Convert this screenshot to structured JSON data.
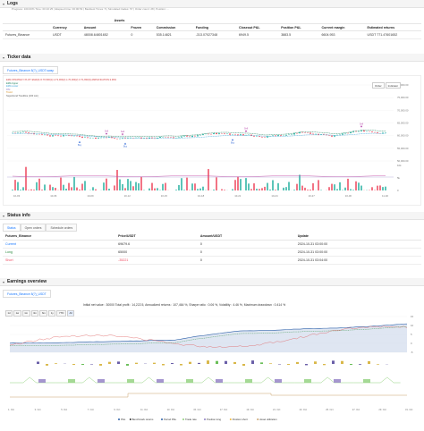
{
  "logs": {
    "title": "Logs",
    "subtitle": "Progress: 100.00% Time: 00:10:25 | Elapsed time: 00:00:53 | Backtest Times: 5 | Simulated trades: 57 | Order count: 28 | Position: ..."
  },
  "summary": {
    "assets_header": "Assets",
    "columns": [
      "",
      "Currency",
      "Amount",
      "Frozen",
      "Commission",
      "Funding",
      "Closeout P&L",
      "Position P&L",
      "Current margin",
      "Estimated returns"
    ],
    "row": [
      "Futures_Binance",
      "USDT",
      "48008.64801652",
      "0",
      "535.14821",
      "-313.07027348",
      "6949.5",
      "3883.5",
      "6604.953",
      "USDT 771.47601652"
    ]
  },
  "ticker": {
    "title": "Ticker data",
    "tab": "Futures_Binance 8(?)_USDT.swap",
    "legend": [
      "EMA STRATEGY PLOT: EMA(9) O:70,500(1) H:72,000(2) L:70,000(2) C:71,800(3) AMPLIFICATION:2.96%",
      "EMA Upper",
      "EMA Lower",
      "RSI",
      "Trend",
      "Supertrend Trendline (100 min)"
    ],
    "price_ticks": [
      "80,000.00",
      "75,000.00",
      "70,000.00",
      "65,000.00",
      "60,000.00",
      "55,000.00",
      "50,000.00"
    ],
    "vol_ticks": [
      "10k",
      "5k",
      "0"
    ],
    "date_ticks": [
      "10-03",
      "10-06",
      "10-09",
      "10-12",
      "10-15",
      "10-18",
      "10-21",
      "10-24",
      "10-27",
      "10-30",
      "11-02"
    ],
    "buttons": [
      "Order",
      "Indicator"
    ],
    "markers": [
      "Buy",
      "Sell",
      "Sell",
      "Buy",
      "Buy",
      "Sell",
      "Sell"
    ]
  },
  "status": {
    "title": "Status info",
    "tabs": [
      "Status",
      "Open orders",
      "Schedule orders"
    ],
    "columns": [
      "Futures_Binance",
      "Price/USDT",
      "Amount/USDT",
      "Update"
    ],
    "rows": [
      [
        "Current",
        "69679.6",
        "0",
        "2024-10-31 03:00:00"
      ],
      [
        "Long",
        "65000",
        "0",
        "2024-10-31 03:00:00"
      ],
      [
        "Short",
        "-35221",
        "0",
        "2024-10-31 03:04:00"
      ]
    ]
  },
  "earnings": {
    "title": "Earnings overview",
    "tab": "Futures_Binance 8(?)_USDT",
    "range_buttons": [
      "1d",
      "1w",
      "1m",
      "3m",
      "6m",
      "1y",
      "YTD",
      "All"
    ],
    "stats": "Initial net value : 30000 Total profit : 14,222.5, Annualized returns : 107,464 %, Sharpe ratio : 0.06 %, Volatility : 4.46 %, Maximum drawdown : 0.414 %",
    "y_right": [
      "15",
      "10",
      "5",
      "0",
      "-5"
    ],
    "date_ticks": [
      "1. Oct",
      "3. Oct",
      "5. Oct",
      "7. Oct",
      "9. Oct",
      "11. Oct",
      "13. Oct",
      "15. Oct",
      "17. Oct",
      "19. Oct",
      "21. Oct",
      "23. Oct",
      "25. Oct",
      "27. Oct",
      "29. Oct",
      "31. Oct"
    ],
    "legend": [
      "P&L",
      "Benchmark returns",
      "Period P&L",
      "Trade rate",
      "Position long",
      "Position short",
      "Asset utilization"
    ],
    "legend_colors": [
      "#2b5fa8",
      "#333333",
      "#2b5fa8",
      "#8fd07a",
      "#8e7cc3",
      "#f0b73a",
      "#c8a06a"
    ]
  },
  "colors": {
    "up": "#2bb3a3",
    "down": "#ef4a60",
    "accent": "#1677ff",
    "ema_fast": "#1a7f5a",
    "ema_slow": "#3aa3d8",
    "pnl": "#2b5fa8"
  }
}
